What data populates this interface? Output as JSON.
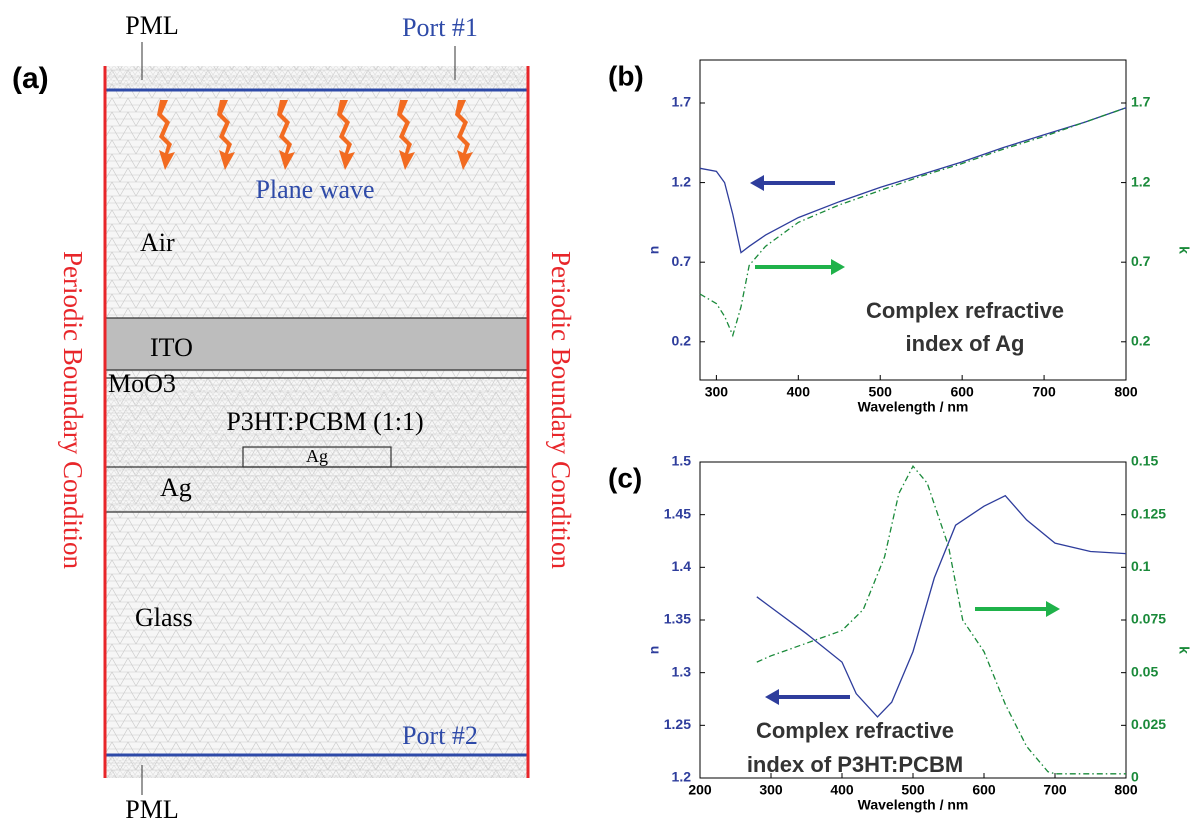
{
  "diagram": {
    "panel_label": "(a)",
    "pml_top": "PML",
    "port_1": "Port #1",
    "plane_wave": "Plane wave",
    "air": "Air",
    "ito": "ITO",
    "moo3": "MoO3",
    "active": "P3HT:PCBM (1:1)",
    "ag_grating": "Ag",
    "ag_layer": "Ag",
    "glass": "Glass",
    "port_2": "Port #2",
    "pml_bottom": "PML",
    "boundary_left": "Periodic Boundary Condition",
    "boundary_right": "Periodic Boundary Condition"
  },
  "chart_data": [
    {
      "type": "line",
      "panel_label": "(b)",
      "xlabel": "Wavelength / nm",
      "ylabel": "n",
      "y2label": "k",
      "annotation": [
        "Complex refractive",
        "index of Ag"
      ],
      "xlim": [
        280,
        800
      ],
      "xticks": [
        300,
        400,
        500,
        600,
        700,
        800
      ],
      "ylim": [
        -0.04,
        1.97
      ],
      "yticks": [
        0.2,
        0.7,
        1.2,
        1.7
      ],
      "y2lim": [
        -0.04,
        1.97
      ],
      "y2ticks": [
        0.2,
        0.7,
        1.2,
        1.7
      ],
      "series": [
        {
          "name": "n",
          "color": "#2e3d9c",
          "linestyle": "solid",
          "x": [
            280,
            300,
            310,
            320,
            330,
            340,
            360,
            400,
            450,
            500,
            550,
            600,
            650,
            700,
            750,
            800
          ],
          "values": [
            1.29,
            1.27,
            1.2,
            1.0,
            0.76,
            0.8,
            0.87,
            0.98,
            1.08,
            1.17,
            1.25,
            1.33,
            1.42,
            1.5,
            1.58,
            1.67
          ]
        },
        {
          "name": "k",
          "color": "#1a8a3a",
          "linestyle": "dash-dot",
          "axis": "y2",
          "x": [
            280,
            300,
            310,
            320,
            330,
            340,
            360,
            400,
            450,
            500,
            550,
            600,
            650,
            700,
            750,
            800
          ],
          "values": [
            0.5,
            0.44,
            0.36,
            0.24,
            0.42,
            0.68,
            0.8,
            0.95,
            1.06,
            1.15,
            1.24,
            1.32,
            1.41,
            1.49,
            1.58,
            1.67
          ]
        }
      ]
    },
    {
      "type": "line",
      "panel_label": "(c)",
      "xlabel": "Wavelength / nm",
      "ylabel": "n",
      "y2label": "k",
      "annotation": [
        "Complex refractive",
        "index of P3HT:PCBM"
      ],
      "xlim": [
        200,
        800
      ],
      "xticks": [
        200,
        300,
        400,
        500,
        600,
        700,
        800
      ],
      "ylim": [
        1.2,
        1.5
      ],
      "yticks": [
        1.2,
        1.25,
        1.3,
        1.35,
        1.4,
        1.45,
        1.5
      ],
      "y2lim": [
        0,
        0.15
      ],
      "y2ticks": [
        0,
        0.025,
        0.05,
        0.075,
        0.1,
        0.125,
        0.15
      ],
      "series": [
        {
          "name": "n",
          "color": "#2e3d9c",
          "linestyle": "solid",
          "x": [
            280,
            300,
            350,
            400,
            420,
            450,
            470,
            500,
            530,
            560,
            600,
            630,
            660,
            700,
            750,
            800
          ],
          "values": [
            1.372,
            1.362,
            1.337,
            1.31,
            1.28,
            1.258,
            1.272,
            1.32,
            1.39,
            1.44,
            1.458,
            1.468,
            1.445,
            1.423,
            1.415,
            1.413
          ]
        },
        {
          "name": "k",
          "color": "#1a8a3a",
          "linestyle": "dash-dot",
          "axis": "y2",
          "x": [
            280,
            300,
            350,
            400,
            430,
            460,
            480,
            500,
            520,
            550,
            570,
            600,
            630,
            660,
            690,
            700,
            800
          ],
          "values": [
            0.055,
            0.058,
            0.064,
            0.07,
            0.08,
            0.105,
            0.135,
            0.148,
            0.14,
            0.11,
            0.075,
            0.06,
            0.035,
            0.015,
            0.003,
            0.002,
            0.002
          ]
        }
      ]
    }
  ]
}
